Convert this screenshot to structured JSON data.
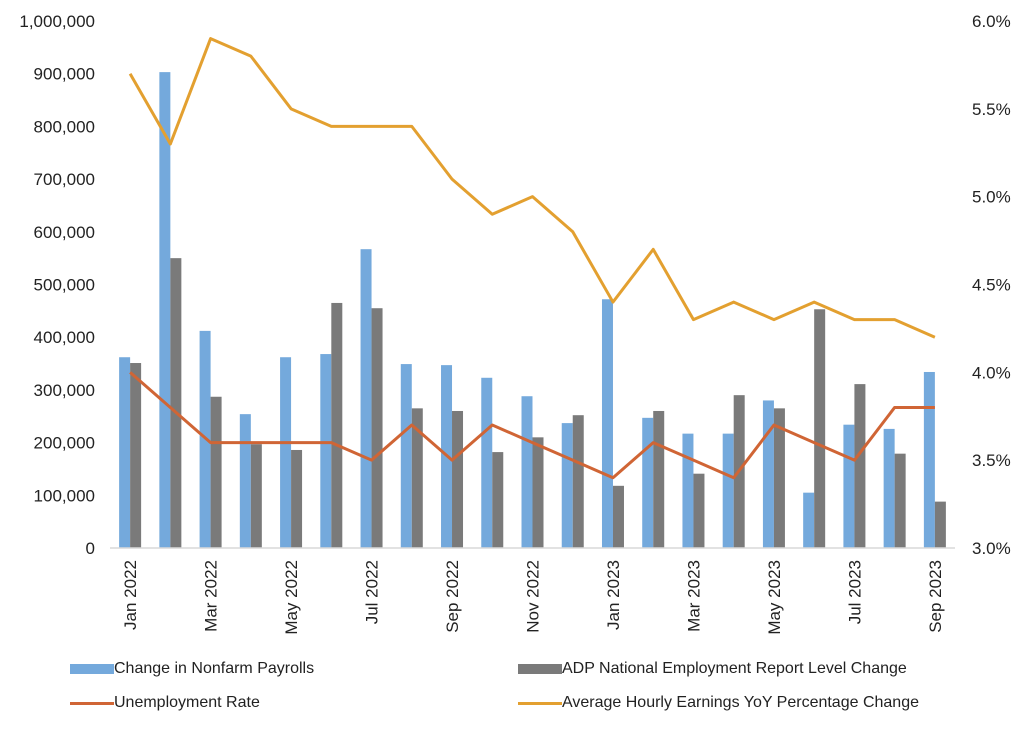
{
  "chart_data": {
    "type": "bar",
    "title": "",
    "xlabel": "",
    "ylabel": "",
    "y2label": "",
    "categories": [
      "Jan 2022",
      "Feb 2022",
      "Mar 2022",
      "Apr 2022",
      "May 2022",
      "Jun 2022",
      "Jul 2022",
      "Aug 2022",
      "Sep 2022",
      "Oct 2022",
      "Nov 2022",
      "Dec 2022",
      "Jan 2023",
      "Feb 2023",
      "Mar 2023",
      "Apr 2023",
      "May 2023",
      "Jun 2023",
      "Jul 2023",
      "Aug 2023",
      "Sep 2023"
    ],
    "x_tick_labels": [
      "Jan 2022",
      "",
      "Mar 2022",
      "",
      "May 2022",
      "",
      "Jul 2022",
      "",
      "Sep 2022",
      "",
      "Nov 2022",
      "",
      "Jan 2023",
      "",
      "Mar 2023",
      "",
      "May 2023",
      "",
      "Jul 2023",
      "",
      "Sep 2023"
    ],
    "ylim": [
      0,
      1000000
    ],
    "y_ticks": [
      0,
      100000,
      200000,
      300000,
      400000,
      500000,
      600000,
      700000,
      800000,
      900000,
      1000000
    ],
    "y_tick_labels": [
      "0",
      "100,000",
      "200,000",
      "300,000",
      "400,000",
      "500,000",
      "600,000",
      "700,000",
      "800,000",
      "900,000",
      "1,000,000"
    ],
    "y2lim": [
      3.0,
      6.0
    ],
    "y2_ticks": [
      3.0,
      3.5,
      4.0,
      4.5,
      5.0,
      5.5,
      6.0
    ],
    "y2_tick_labels": [
      "3.0%",
      "3.5%",
      "4.0%",
      "4.5%",
      "5.0%",
      "5.5%",
      "6.0%"
    ],
    "grid": false,
    "legend_position": "bottom",
    "series": [
      {
        "name": "Change in Nonfarm Payrolls",
        "type": "bar",
        "axis": "left",
        "color": "#74a9dc",
        "values": [
          362000,
          903000,
          412000,
          254000,
          362000,
          368000,
          567000,
          349000,
          347000,
          323000,
          288000,
          237000,
          472000,
          247000,
          217000,
          217000,
          280000,
          105000,
          234000,
          226000,
          334000
        ]
      },
      {
        "name": "ADP National Employment Report Level Change",
        "type": "bar",
        "axis": "left",
        "color": "#7a7a7a",
        "values": [
          351000,
          550000,
          287000,
          197000,
          186000,
          465000,
          455000,
          265000,
          260000,
          182000,
          210000,
          252000,
          118000,
          260000,
          141000,
          290000,
          265000,
          453000,
          311000,
          179000,
          88000
        ]
      },
      {
        "name": "Unemployment Rate",
        "type": "line",
        "axis": "right",
        "color": "#d06535",
        "values": [
          4.0,
          3.8,
          3.6,
          3.6,
          3.6,
          3.6,
          3.5,
          3.7,
          3.5,
          3.7,
          3.6,
          3.5,
          3.4,
          3.6,
          3.5,
          3.4,
          3.7,
          3.6,
          3.5,
          3.8,
          3.8
        ]
      },
      {
        "name": "Average Hourly Earnings YoY Percentage Change",
        "type": "line",
        "axis": "right",
        "color": "#e3a030",
        "values": [
          5.7,
          5.3,
          5.9,
          5.8,
          5.5,
          5.4,
          5.4,
          5.4,
          5.1,
          4.9,
          5.0,
          4.8,
          4.4,
          4.7,
          4.3,
          4.4,
          4.3,
          4.4,
          4.3,
          4.3,
          4.2
        ]
      }
    ]
  },
  "legend": [
    {
      "label": "Change in Nonfarm Payrolls",
      "kind": "bar",
      "color": "#74a9dc"
    },
    {
      "label": "ADP National Employment Report Level Change",
      "kind": "bar",
      "color": "#7a7a7a"
    },
    {
      "label": "Unemployment Rate",
      "kind": "line",
      "color": "#d06535"
    },
    {
      "label": "Average Hourly Earnings YoY Percentage Change",
      "kind": "line",
      "color": "#e3a030"
    }
  ]
}
